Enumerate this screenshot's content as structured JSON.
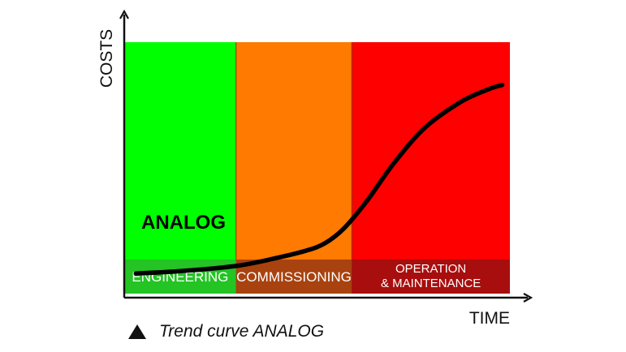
{
  "chart_data": {
    "type": "line",
    "ylabel": "COSTS",
    "xlabel": "TIME",
    "grid": false,
    "phases": [
      {
        "label": "ENGINEERING",
        "color": "#00ff00",
        "label_bg": "#23c423",
        "label_color": "#ffffff",
        "start": 0.0,
        "end": 0.29
      },
      {
        "label": "COMMISSIONING",
        "color": "#ff7a00",
        "label_bg": "#a8420f",
        "label_color": "#ffffff",
        "start": 0.29,
        "end": 0.59
      },
      {
        "label": "OPERATION\n& MAINTENANCE",
        "color": "#ff0000",
        "label_bg": "#a80e0e",
        "label_color": "#ffffff",
        "start": 0.59,
        "end": 1.0
      }
    ],
    "series": [
      {
        "name": "ANALOG",
        "color": "#000000",
        "points": [
          [
            0.03,
            0.08
          ],
          [
            0.15,
            0.09
          ],
          [
            0.29,
            0.11
          ],
          [
            0.39,
            0.14
          ],
          [
            0.47,
            0.17
          ],
          [
            0.52,
            0.2
          ],
          [
            0.57,
            0.26
          ],
          [
            0.63,
            0.37
          ],
          [
            0.7,
            0.52
          ],
          [
            0.78,
            0.66
          ],
          [
            0.87,
            0.76
          ],
          [
            0.94,
            0.81
          ],
          [
            0.98,
            0.83
          ]
        ]
      }
    ],
    "xlim": [
      0,
      1
    ],
    "ylim": [
      0,
      1
    ]
  },
  "caption": {
    "marker": "triangle",
    "text": "Trend curve ANALOG"
  }
}
